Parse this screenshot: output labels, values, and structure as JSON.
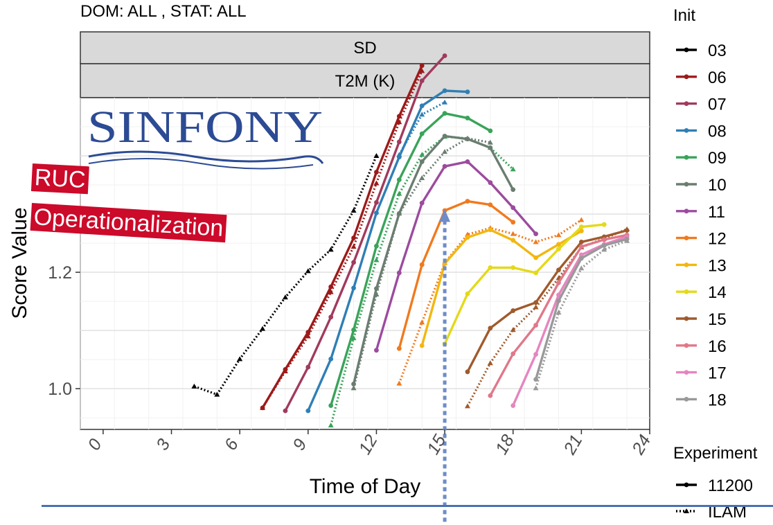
{
  "plot_header": "DOM:  ALL , STAT: ALL",
  "logo_text": "SINFONY",
  "overlay": {
    "line1": "RUC",
    "line2": "Operationalization"
  },
  "chart_data": {
    "type": "line",
    "strip_labels": [
      "SD",
      "T2M (K)"
    ],
    "xlabel": "Time of Day",
    "ylabel": "Score Value",
    "xlim": [
      -1,
      24
    ],
    "ylim": [
      0.93,
      1.5
    ],
    "x_ticks": [
      0,
      3,
      6,
      9,
      12,
      15,
      18,
      21,
      24
    ],
    "y_ticks": [
      1.0,
      1.2
    ],
    "y_tick_labels": [
      "1.0",
      "1.2"
    ],
    "grid": true,
    "legend_position": "right",
    "legend_init_title": "Init",
    "legend_experiment_title": "Experiment",
    "experiments": [
      {
        "name": "11200",
        "linetype": "solid"
      },
      {
        "name": "ILAM",
        "linetype": "dotted"
      }
    ],
    "series": [
      {
        "init": "03",
        "color": "#000000",
        "solid": {
          "x": [],
          "y": []
        },
        "dotted": {
          "x": [
            4,
            5,
            6,
            7,
            8,
            9,
            10,
            11,
            12
          ],
          "y": [
            1.004,
            0.99,
            1.051,
            1.103,
            1.157,
            1.202,
            1.239,
            1.306,
            1.4
          ]
        }
      },
      {
        "init": "06",
        "color": "#9c1a1a",
        "solid": {
          "x": [
            7,
            8,
            9,
            10,
            11,
            12,
            13,
            14
          ],
          "y": [
            0.967,
            1.033,
            1.097,
            1.175,
            1.259,
            1.372,
            1.468,
            1.555
          ]
        },
        "dotted": {
          "x": [
            7,
            8,
            9,
            10,
            11,
            12,
            13,
            14
          ],
          "y": [
            0.967,
            1.03,
            1.09,
            1.166,
            1.244,
            1.353,
            1.458,
            1.546
          ]
        }
      },
      {
        "init": "07",
        "color": "#a13a5d",
        "solid": {
          "x": [
            8,
            9,
            10,
            11,
            12,
            13,
            14,
            15
          ],
          "y": [
            0.962,
            1.037,
            1.123,
            1.217,
            1.32,
            1.424,
            1.529,
            1.572
          ]
        },
        "dotted": {
          "x": [],
          "y": []
        }
      },
      {
        "init": "08",
        "color": "#2f7fb5",
        "solid": {
          "x": [
            9,
            10,
            11,
            12,
            13,
            14,
            15,
            16
          ],
          "y": [
            0.962,
            1.051,
            1.173,
            1.302,
            1.398,
            1.486,
            1.512,
            1.51
          ]
        },
        "dotted": {
          "x": [
            13,
            14,
            15
          ],
          "y": [
            1.402,
            1.471,
            1.492
          ]
        }
      },
      {
        "init": "09",
        "color": "#3aa35a",
        "solid": {
          "x": [
            10,
            11,
            12,
            13,
            14,
            15,
            16,
            17
          ],
          "y": [
            0.971,
            1.101,
            1.245,
            1.359,
            1.438,
            1.473,
            1.465,
            1.443
          ]
        },
        "dotted": {
          "x": [
            10,
            11,
            12,
            13,
            14,
            15,
            16,
            17,
            18
          ],
          "y": [
            0.937,
            1.087,
            1.221,
            1.335,
            1.402,
            1.433,
            1.43,
            1.414,
            1.377
          ]
        }
      },
      {
        "init": "10",
        "color": "#6b7d71",
        "solid": {
          "x": [
            11,
            12,
            13,
            14,
            15,
            16,
            17,
            18
          ],
          "y": [
            1.008,
            1.172,
            1.301,
            1.39,
            1.434,
            1.429,
            1.414,
            1.342
          ]
        },
        "dotted": {
          "x": [
            11,
            12,
            13,
            14,
            15,
            16,
            17
          ],
          "y": [
            1.001,
            1.162,
            1.301,
            1.362,
            1.407,
            1.43,
            1.423
          ]
        }
      },
      {
        "init": "11",
        "color": "#9c4b9e",
        "solid": {
          "x": [
            12,
            13,
            14,
            15,
            16,
            17,
            18,
            19
          ],
          "y": [
            1.066,
            1.199,
            1.319,
            1.382,
            1.39,
            1.354,
            1.311,
            1.266
          ]
        },
        "dotted": {
          "x": [],
          "y": []
        }
      },
      {
        "init": "12",
        "color": "#f07a1e",
        "solid": {
          "x": [
            13,
            14,
            15,
            16,
            17,
            18
          ],
          "y": [
            1.069,
            1.213,
            1.306,
            1.322,
            1.316,
            1.286
          ]
        },
        "dotted": {
          "x": [
            13,
            14,
            15,
            16,
            17,
            18,
            19,
            20,
            21
          ],
          "y": [
            1.009,
            1.114,
            1.216,
            1.265,
            1.276,
            1.266,
            1.252,
            1.264,
            1.29
          ]
        }
      },
      {
        "init": "13",
        "color": "#f2b70f",
        "solid": {
          "x": [
            14,
            15,
            16,
            17,
            18,
            19,
            20,
            21
          ],
          "y": [
            1.074,
            1.215,
            1.26,
            1.273,
            1.255,
            1.225,
            1.248,
            1.271
          ]
        },
        "dotted": {
          "x": [],
          "y": []
        }
      },
      {
        "init": "14",
        "color": "#e4d91a",
        "solid": {
          "x": [
            15,
            16,
            17,
            18,
            19,
            20,
            21,
            22
          ],
          "y": [
            1.077,
            1.163,
            1.208,
            1.208,
            1.199,
            1.24,
            1.278,
            1.282
          ]
        },
        "dotted": {
          "x": [],
          "y": []
        }
      },
      {
        "init": "15",
        "color": "#a05a2c",
        "solid": {
          "x": [
            16,
            17,
            18,
            19,
            20,
            21,
            22,
            23
          ],
          "y": [
            1.029,
            1.104,
            1.134,
            1.148,
            1.204,
            1.252,
            1.261,
            1.272
          ]
        },
        "dotted": {
          "x": [
            16,
            17,
            18,
            19,
            20,
            21,
            22,
            23
          ],
          "y": [
            0.97,
            1.044,
            1.101,
            1.14,
            1.19,
            1.243,
            1.258,
            1.274
          ]
        }
      },
      {
        "init": "16",
        "color": "#e0788a",
        "solid": {
          "x": [
            17,
            18,
            19,
            20,
            21,
            22,
            23
          ],
          "y": [
            0.988,
            1.06,
            1.109,
            1.182,
            1.244,
            1.256,
            1.264
          ]
        },
        "dotted": {
          "x": [],
          "y": []
        }
      },
      {
        "init": "17",
        "color": "#e585bf",
        "solid": {
          "x": [
            0,
            1
          ],
          "y": [
            1.283,
            1.281
          ]
        },
        "dotted": {
          "x": [
            -0.1,
            0.3,
            1.1
          ],
          "y": [
            1.278,
            1.277,
            1.275
          ]
        },
        "solid2": {
          "x": [
            18,
            19,
            20,
            21,
            22,
            23
          ],
          "y": [
            0.971,
            1.059,
            1.161,
            1.23,
            1.248,
            1.261
          ]
        }
      },
      {
        "init": "18",
        "color": "#999999",
        "solid": {
          "x": [
            19,
            20,
            21,
            22,
            23
          ],
          "y": [
            1.016,
            1.151,
            1.224,
            1.246,
            1.257
          ]
        },
        "dotted": {
          "x": [
            19,
            20,
            21,
            22,
            23
          ],
          "y": [
            1.001,
            1.131,
            1.207,
            1.239,
            1.254
          ]
        }
      }
    ],
    "annotation_arrow": {
      "x": 15,
      "y_top": 1.308
    }
  }
}
